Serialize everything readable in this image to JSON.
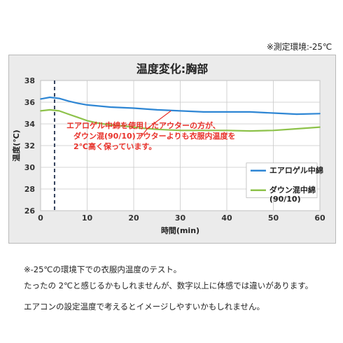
{
  "header": {
    "env_note": "※測定環境:-25℃"
  },
  "chart_data": {
    "type": "line",
    "title": "温度変化:胸部",
    "xlabel": "時間(min)",
    "ylabel": "温度(℃)",
    "xlim": [
      0,
      60
    ],
    "ylim": [
      26,
      38
    ],
    "xticks": [
      0,
      10,
      20,
      30,
      40,
      50,
      60
    ],
    "yticks": [
      26,
      28,
      30,
      32,
      34,
      36,
      38
    ],
    "grid": true,
    "legend_position": "bottom-right",
    "marker_line_x": 3,
    "series": [
      {
        "name": "エアロゲル中綿",
        "color": "#2e86d4",
        "x": [
          0,
          2,
          4,
          6,
          8,
          10,
          15,
          20,
          25,
          30,
          35,
          40,
          45,
          50,
          55,
          60
        ],
        "values": [
          36.3,
          36.45,
          36.35,
          36.1,
          35.9,
          35.75,
          35.55,
          35.45,
          35.3,
          35.2,
          35.1,
          35.1,
          35.1,
          35.0,
          34.9,
          34.95
        ]
      },
      {
        "name": "ダウン混中綿\n(90/10)",
        "color": "#8dc24a",
        "x": [
          0,
          2,
          4,
          6,
          8,
          10,
          12,
          15,
          18,
          20,
          22,
          25,
          30,
          35,
          40,
          45,
          50,
          55,
          60
        ],
        "values": [
          35.2,
          35.3,
          35.2,
          34.9,
          34.6,
          34.3,
          34.1,
          33.9,
          33.8,
          33.7,
          33.6,
          33.5,
          33.4,
          33.4,
          33.4,
          33.35,
          33.4,
          33.55,
          33.7
        ]
      }
    ],
    "annotation": {
      "lines": [
        "エアロゲル中綿を使用したアウターの方が、",
        "ダウン混(90/10)アウターよりも衣服内温度を",
        "2℃高く保っています。"
      ],
      "arrow_targets": [
        [
          23,
          33.6
        ],
        [
          28,
          35.2
        ]
      ]
    }
  },
  "captions": [
    "※-25℃の環境下での衣服内温度のテスト。",
    "たったの 2℃と感じるかもしれませんが、数字以上に体感では違いがあります。",
    "エアコンの設定温度で考えるとイメージしやすいかもしれません。"
  ]
}
